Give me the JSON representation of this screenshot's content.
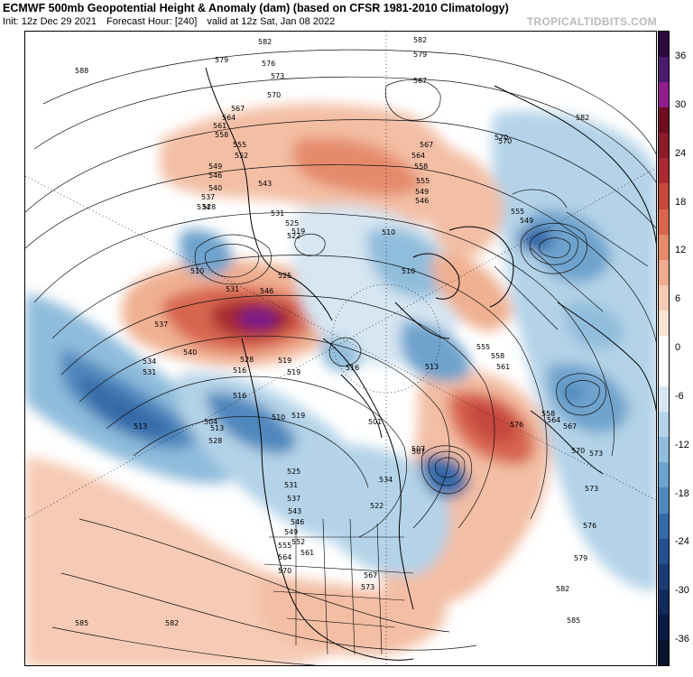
{
  "header": {
    "title": "ECMWF 500mb Geopotential Height & Anomaly (dam) (based on CFSR 1981-2010 Climatology)",
    "init": "Init: 12z Dec 29 2021",
    "forecast_hour": "Forecast Hour: [240]",
    "valid": "valid at 12z Sat, Jan 08 2022",
    "brand": "TROPICALTIDBITS.COM"
  },
  "colorbar": {
    "labels": [
      "36",
      "30",
      "24",
      "18",
      "12",
      "6",
      "0",
      "-6",
      "-12",
      "-18",
      "-24",
      "-30",
      "-36"
    ],
    "colors": [
      "#2b0a3d",
      "#4a1a6e",
      "#8f1d8e",
      "#6d0d1f",
      "#8c1a28",
      "#a92a33",
      "#c6473d",
      "#d8664f",
      "#e58b6c",
      "#efac90",
      "#f6cab4",
      "#fbe3d5",
      "#ffffff",
      "#ffffff",
      "#d6e6f2",
      "#b4d3e8",
      "#91bddc",
      "#6ea3cd",
      "#4f88bd",
      "#346aa8",
      "#24508f",
      "#1a3a74",
      "#112a5c",
      "#0b1c44",
      "#06122e"
    ]
  },
  "contour_labels": [
    "582",
    "579",
    "576",
    "573",
    "570",
    "567",
    "564",
    "561",
    "558",
    "555",
    "552",
    "549",
    "546",
    "543",
    "540",
    "537",
    "534",
    "531",
    "528",
    "525",
    "522",
    "519",
    "516",
    "513",
    "510",
    "507",
    "504",
    "501",
    "588",
    "585"
  ],
  "map_labels": [
    "582",
    "579",
    "576",
    "573",
    "570",
    "567",
    "564",
    "561",
    "558",
    "555",
    "552",
    "549",
    "546",
    "543",
    "540",
    "537",
    "534",
    "531",
    "528",
    "525",
    "522",
    "519",
    "510",
    "567",
    "582",
    "579",
    "588",
    "567",
    "564",
    "558",
    "555",
    "549",
    "546",
    "570",
    "582",
    "555",
    "549",
    "531",
    "537",
    "534",
    "531",
    "540",
    "546",
    "528",
    "525",
    "519",
    "516",
    "510",
    "510",
    "513",
    "504",
    "507",
    "510",
    "513",
    "516",
    "519",
    "525",
    "528",
    "531",
    "534",
    "537",
    "543",
    "546",
    "549",
    "552",
    "555",
    "561",
    "564",
    "567",
    "570",
    "573",
    "558",
    "564",
    "567",
    "570",
    "573",
    "576",
    "579",
    "582",
    "585",
    "582",
    "585",
    "501",
    "507",
    "513",
    "516",
    "519",
    "522",
    "555",
    "558",
    "561",
    "576",
    "570",
    "573"
  ]
}
